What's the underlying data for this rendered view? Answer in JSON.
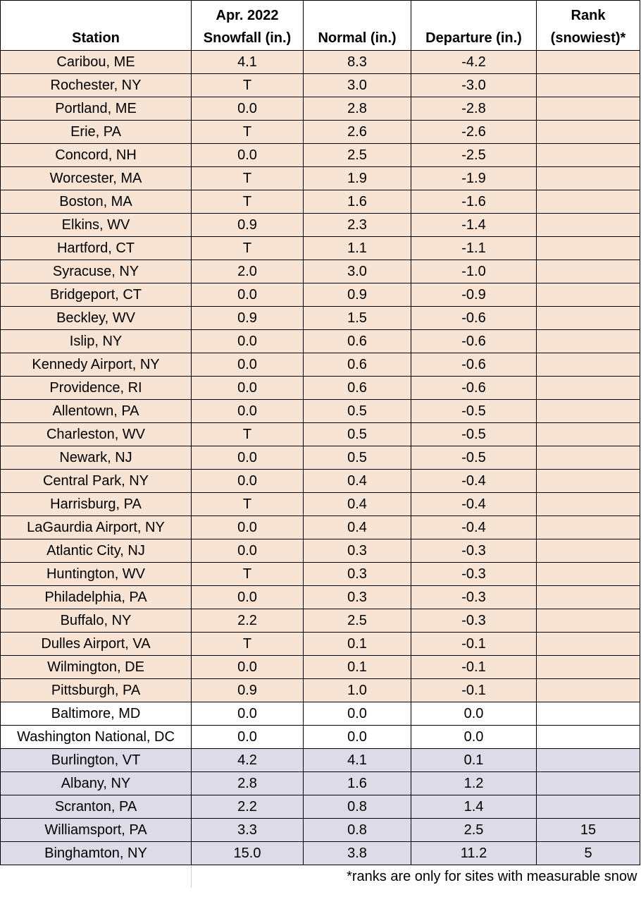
{
  "headers": {
    "station": "Station",
    "snowfall_line1": "Apr. 2022",
    "snowfall_line2": "Snowfall (in.)",
    "normal": "Normal (in.)",
    "departure": "Departure (in.)",
    "rank_line1": "Rank",
    "rank_line2": "(snowiest)*"
  },
  "colors": {
    "below_normal": "#f7e4d5",
    "near_normal": "#ffffff",
    "above_normal": "#dedbe8"
  },
  "rows": [
    {
      "station": "Caribou, ME",
      "snowfall": "4.1",
      "normal": "8.3",
      "departure": "-4.2",
      "rank": "",
      "category": "below"
    },
    {
      "station": "Rochester, NY",
      "snowfall": "T",
      "normal": "3.0",
      "departure": "-3.0",
      "rank": "",
      "category": "below"
    },
    {
      "station": "Portland, ME",
      "snowfall": "0.0",
      "normal": "2.8",
      "departure": "-2.8",
      "rank": "",
      "category": "below"
    },
    {
      "station": "Erie, PA",
      "snowfall": "T",
      "normal": "2.6",
      "departure": "-2.6",
      "rank": "",
      "category": "below"
    },
    {
      "station": "Concord, NH",
      "snowfall": "0.0",
      "normal": "2.5",
      "departure": "-2.5",
      "rank": "",
      "category": "below"
    },
    {
      "station": "Worcester, MA",
      "snowfall": "T",
      "normal": "1.9",
      "departure": "-1.9",
      "rank": "",
      "category": "below"
    },
    {
      "station": "Boston, MA",
      "snowfall": "T",
      "normal": "1.6",
      "departure": "-1.6",
      "rank": "",
      "category": "below"
    },
    {
      "station": "Elkins, WV",
      "snowfall": "0.9",
      "normal": "2.3",
      "departure": "-1.4",
      "rank": "",
      "category": "below"
    },
    {
      "station": "Hartford, CT",
      "snowfall": "T",
      "normal": "1.1",
      "departure": "-1.1",
      "rank": "",
      "category": "below"
    },
    {
      "station": "Syracuse, NY",
      "snowfall": "2.0",
      "normal": "3.0",
      "departure": "-1.0",
      "rank": "",
      "category": "below"
    },
    {
      "station": "Bridgeport, CT",
      "snowfall": "0.0",
      "normal": "0.9",
      "departure": "-0.9",
      "rank": "",
      "category": "below"
    },
    {
      "station": "Beckley, WV",
      "snowfall": "0.9",
      "normal": "1.5",
      "departure": "-0.6",
      "rank": "",
      "category": "below"
    },
    {
      "station": "Islip, NY",
      "snowfall": "0.0",
      "normal": "0.6",
      "departure": "-0.6",
      "rank": "",
      "category": "below"
    },
    {
      "station": "Kennedy Airport, NY",
      "snowfall": "0.0",
      "normal": "0.6",
      "departure": "-0.6",
      "rank": "",
      "category": "below"
    },
    {
      "station": "Providence, RI",
      "snowfall": "0.0",
      "normal": "0.6",
      "departure": "-0.6",
      "rank": "",
      "category": "below"
    },
    {
      "station": "Allentown, PA",
      "snowfall": "0.0",
      "normal": "0.5",
      "departure": "-0.5",
      "rank": "",
      "category": "below"
    },
    {
      "station": "Charleston, WV",
      "snowfall": "T",
      "normal": "0.5",
      "departure": "-0.5",
      "rank": "",
      "category": "below"
    },
    {
      "station": "Newark, NJ",
      "snowfall": "0.0",
      "normal": "0.5",
      "departure": "-0.5",
      "rank": "",
      "category": "below"
    },
    {
      "station": "Central Park, NY",
      "snowfall": "0.0",
      "normal": "0.4",
      "departure": "-0.4",
      "rank": "",
      "category": "below"
    },
    {
      "station": "Harrisburg, PA",
      "snowfall": "T",
      "normal": "0.4",
      "departure": "-0.4",
      "rank": "",
      "category": "below"
    },
    {
      "station": "LaGaurdia Airport, NY",
      "snowfall": "0.0",
      "normal": "0.4",
      "departure": "-0.4",
      "rank": "",
      "category": "below"
    },
    {
      "station": "Atlantic City, NJ",
      "snowfall": "0.0",
      "normal": "0.3",
      "departure": "-0.3",
      "rank": "",
      "category": "below"
    },
    {
      "station": "Huntington, WV",
      "snowfall": "T",
      "normal": "0.3",
      "departure": "-0.3",
      "rank": "",
      "category": "below"
    },
    {
      "station": "Philadelphia, PA",
      "snowfall": "0.0",
      "normal": "0.3",
      "departure": "-0.3",
      "rank": "",
      "category": "below"
    },
    {
      "station": "Buffalo, NY",
      "snowfall": "2.2",
      "normal": "2.5",
      "departure": "-0.3",
      "rank": "",
      "category": "below"
    },
    {
      "station": "Dulles Airport, VA",
      "snowfall": "T",
      "normal": "0.1",
      "departure": "-0.1",
      "rank": "",
      "category": "below"
    },
    {
      "station": "Wilmington, DE",
      "snowfall": "0.0",
      "normal": "0.1",
      "departure": "-0.1",
      "rank": "",
      "category": "below"
    },
    {
      "station": "Pittsburgh, PA",
      "snowfall": "0.9",
      "normal": "1.0",
      "departure": "-0.1",
      "rank": "",
      "category": "below"
    },
    {
      "station": "Baltimore, MD",
      "snowfall": "0.0",
      "normal": "0.0",
      "departure": "0.0",
      "rank": "",
      "category": "normal"
    },
    {
      "station": "Washington National, DC",
      "snowfall": "0.0",
      "normal": "0.0",
      "departure": "0.0",
      "rank": "",
      "category": "normal"
    },
    {
      "station": "Burlington, VT",
      "snowfall": "4.2",
      "normal": "4.1",
      "departure": "0.1",
      "rank": "",
      "category": "above"
    },
    {
      "station": "Albany, NY",
      "snowfall": "2.8",
      "normal": "1.6",
      "departure": "1.2",
      "rank": "",
      "category": "above"
    },
    {
      "station": "Scranton, PA",
      "snowfall": "2.2",
      "normal": "0.8",
      "departure": "1.4",
      "rank": "",
      "category": "above"
    },
    {
      "station": "Williamsport, PA",
      "snowfall": "3.3",
      "normal": "0.8",
      "departure": "2.5",
      "rank": "15",
      "category": "above"
    },
    {
      "station": "Binghamton, NY",
      "snowfall": "15.0",
      "normal": "3.8",
      "departure": "11.2",
      "rank": "5",
      "category": "above"
    }
  ],
  "footnote": "*ranks are only for sites with measurable snow"
}
